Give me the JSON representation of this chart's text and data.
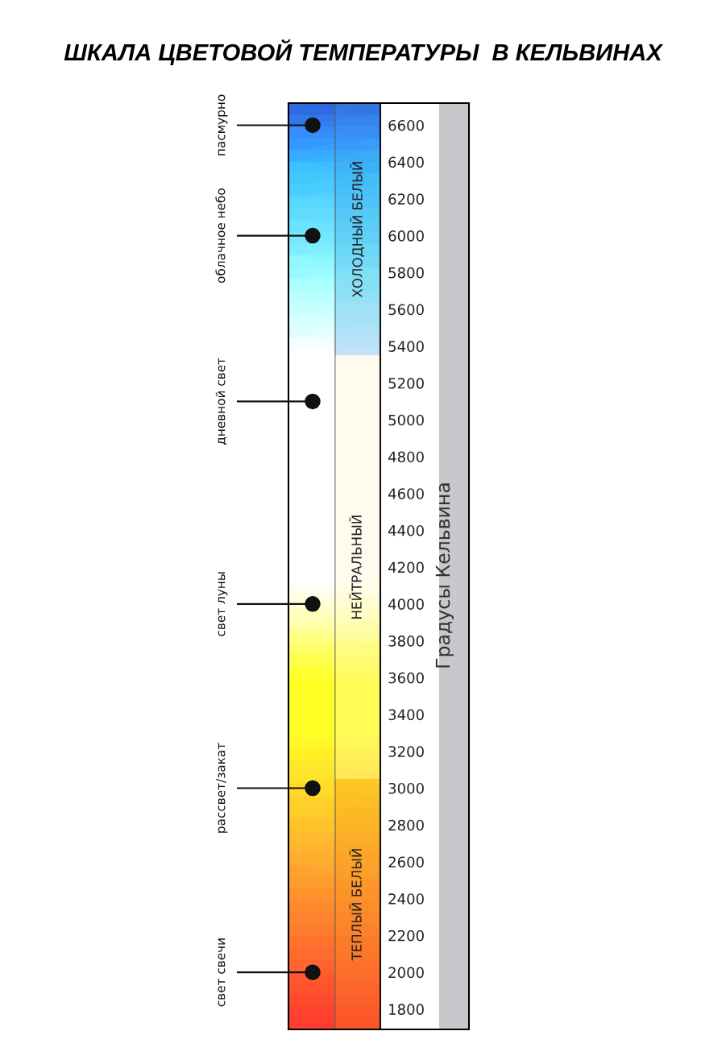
{
  "chart_data": {
    "type": "scatter",
    "title": "ШКАЛА ЦВЕТОВОЙ ТЕМПЕРАТУРЫ  В КЕЛЬВИНАХ",
    "ylabel": "Градусы Кельвина",
    "categories": [
      null
    ],
    "series": [
      {
        "name": "пасмурно",
        "color": "#111111",
        "values": [
          6600
        ]
      },
      {
        "name": "облачное небо",
        "color": "#111111",
        "values": [
          6000
        ]
      },
      {
        "name": "дневной свет",
        "color": "#111111",
        "values": [
          5100
        ]
      },
      {
        "name": "свет луны",
        "color": "#111111",
        "values": [
          4000
        ]
      },
      {
        "name": "рассвет/закат",
        "color": "#111111",
        "values": [
          3000
        ]
      },
      {
        "name": "свет свечи",
        "color": "#111111",
        "values": [
          2000
        ]
      }
    ],
    "bands": [
      {
        "axis": "y",
        "from": 5350,
        "to": 6720,
        "label": "ХОЛОДНЫЙ БЕЛЫЙ",
        "color": "#3d9be3"
      },
      {
        "axis": "y",
        "from": 3050,
        "to": 5350,
        "label": "НЕЙТРАЛЬНЫЙ",
        "color": "#fff6c8"
      },
      {
        "axis": "y",
        "from": 1690,
        "to": 3050,
        "label": "ТЕПЛЫЙ БЕЛЫЙ",
        "color": "#f4931e"
      }
    ],
    "ylim": [
      1690,
      6720
    ],
    "yticks": [
      1800,
      2000,
      2200,
      2400,
      2600,
      2800,
      3000,
      3200,
      3400,
      3600,
      3800,
      4000,
      4200,
      4400,
      4600,
      4800,
      5000,
      5200,
      5400,
      5600,
      5800,
      6000,
      6200,
      6400,
      6600
    ],
    "marker": "circle",
    "legend": false,
    "grid": false
  }
}
